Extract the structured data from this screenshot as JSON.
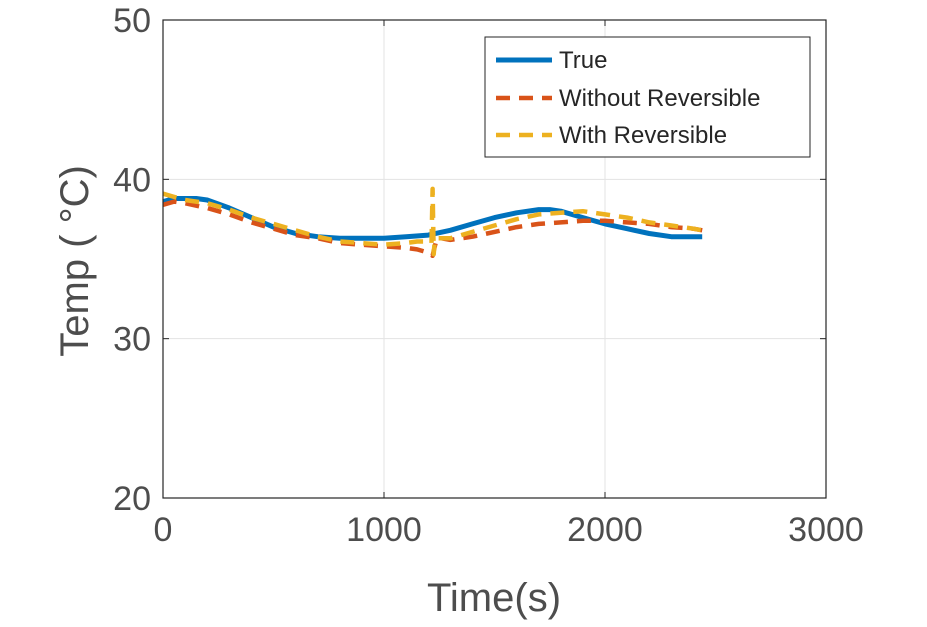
{
  "chart_data": {
    "type": "line",
    "xlabel": "Time(s)",
    "ylabel": "Temp ( °C)",
    "xlim": [
      0,
      3000
    ],
    "ylim": [
      20,
      50
    ],
    "xticks": [
      0,
      1000,
      2000,
      3000
    ],
    "yticks": [
      20,
      30,
      40,
      50
    ],
    "xtick_labels": [
      "0",
      "1000",
      "2000",
      "3000"
    ],
    "ytick_labels": [
      "20",
      "30",
      "40",
      "50"
    ],
    "grid": true,
    "legend_position": "top-right",
    "series": [
      {
        "name": "True",
        "color": "#0072bd",
        "style": "solid",
        "x": [
          0,
          50,
          100,
          150,
          200,
          300,
          400,
          500,
          600,
          700,
          800,
          900,
          1000,
          1100,
          1200,
          1300,
          1400,
          1500,
          1600,
          1700,
          1750,
          1800,
          1900,
          2000,
          2100,
          2200,
          2300,
          2400,
          2440
        ],
        "y": [
          38.6,
          38.8,
          38.8,
          38.8,
          38.7,
          38.2,
          37.6,
          37.0,
          36.6,
          36.4,
          36.3,
          36.3,
          36.3,
          36.4,
          36.5,
          36.8,
          37.2,
          37.6,
          37.9,
          38.1,
          38.1,
          38.0,
          37.6,
          37.2,
          36.9,
          36.6,
          36.4,
          36.4,
          36.4
        ]
      },
      {
        "name": "Without Reversible",
        "color": "#d95319",
        "style": "dashed",
        "x": [
          0,
          50,
          100,
          200,
          300,
          400,
          500,
          600,
          700,
          800,
          900,
          1000,
          1100,
          1150,
          1200,
          1220,
          1230,
          1240,
          1260,
          1300,
          1400,
          1500,
          1600,
          1700,
          1800,
          1900,
          2000,
          2100,
          2200,
          2300,
          2400,
          2440
        ],
        "y": [
          38.4,
          38.6,
          38.5,
          38.2,
          37.8,
          37.3,
          36.9,
          36.5,
          36.3,
          36.0,
          35.9,
          35.8,
          35.7,
          35.6,
          35.4,
          35.2,
          35.8,
          36.3,
          36.3,
          36.2,
          36.4,
          36.7,
          37.0,
          37.2,
          37.3,
          37.4,
          37.4,
          37.3,
          37.2,
          37.0,
          36.9,
          36.8
        ]
      },
      {
        "name": "With Reversible",
        "color": "#edb120",
        "style": "dashed",
        "x": [
          0,
          50,
          100,
          150,
          200,
          300,
          400,
          500,
          600,
          700,
          800,
          900,
          1000,
          1100,
          1150,
          1200,
          1215,
          1220,
          1225,
          1230,
          1240,
          1260,
          1300,
          1400,
          1500,
          1600,
          1700,
          1800,
          1900,
          2000,
          2100,
          2200,
          2300,
          2400,
          2440
        ],
        "y": [
          39.1,
          38.9,
          38.7,
          38.6,
          38.5,
          38.1,
          37.6,
          37.2,
          36.8,
          36.4,
          36.1,
          36.0,
          35.9,
          36.0,
          36.1,
          36.1,
          36.0,
          39.4,
          35.3,
          36.2,
          36.3,
          36.3,
          36.3,
          36.7,
          37.1,
          37.5,
          37.8,
          37.9,
          38.0,
          37.8,
          37.6,
          37.3,
          37.1,
          36.9,
          36.8
        ]
      }
    ]
  }
}
